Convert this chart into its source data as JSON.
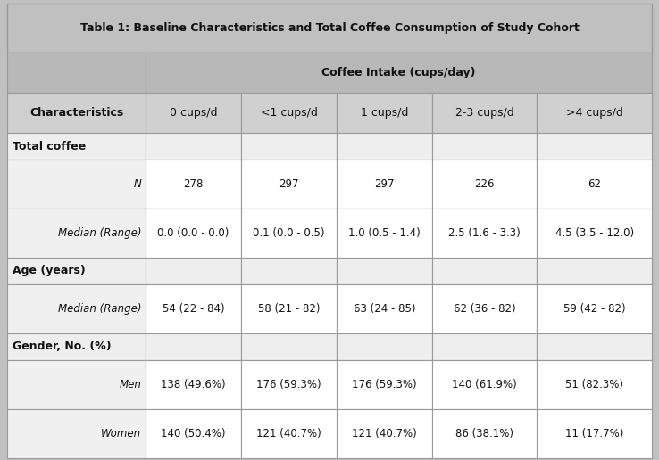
{
  "title": "Table 1: Baseline Characteristics and Total Coffee Consumption of Study Cohort",
  "coffee_intake_header": "Coffee Intake (cups/day)",
  "col_headers": [
    "Characteristics",
    "0 cups/d",
    "<1 cups/d",
    "1 cups/d",
    "2-3 cups/d",
    ">4 cups/d"
  ],
  "sections": [
    {
      "section_label": "Total coffee",
      "rows": [
        {
          "label": "N",
          "values": [
            "278",
            "297",
            "297",
            "226",
            "62"
          ]
        },
        {
          "label": "Median (Range)",
          "values": [
            "0.0 (0.0 - 0.0)",
            "0.1 (0.0 - 0.5)",
            "1.0 (0.5 - 1.4)",
            "2.5 (1.6 - 3.3)",
            "4.5 (3.5 - 12.0)"
          ]
        }
      ]
    },
    {
      "section_label": "Age (years)",
      "rows": [
        {
          "label": "Median (Range)",
          "values": [
            "54 (22 - 84)",
            "58 (21 - 82)",
            "63 (24 - 85)",
            "62 (36 - 82)",
            "59 (42 - 82)"
          ]
        }
      ]
    },
    {
      "section_label": "Gender, No. (%)",
      "rows": [
        {
          "label": "Men",
          "values": [
            "138 (49.6%)",
            "176 (59.3%)",
            "176 (59.3%)",
            "140 (61.9%)",
            "51 (82.3%)"
          ]
        },
        {
          "label": "Women",
          "values": [
            "140 (50.4%)",
            "121 (40.7%)",
            "121 (40.7%)",
            "86 (38.1%)",
            "11 (17.7%)"
          ]
        }
      ]
    }
  ],
  "bg_title": "#c0c0c0",
  "bg_coffee_header": "#b8b8b8",
  "bg_col_header": "#d0d0d0",
  "bg_section_left": "#eeeeee",
  "bg_data_left": "#f0f0f0",
  "bg_data_right": "#ffffff",
  "border_color": "#999999",
  "title_fontsize": 9,
  "header_fontsize": 9,
  "data_fontsize": 8.5
}
